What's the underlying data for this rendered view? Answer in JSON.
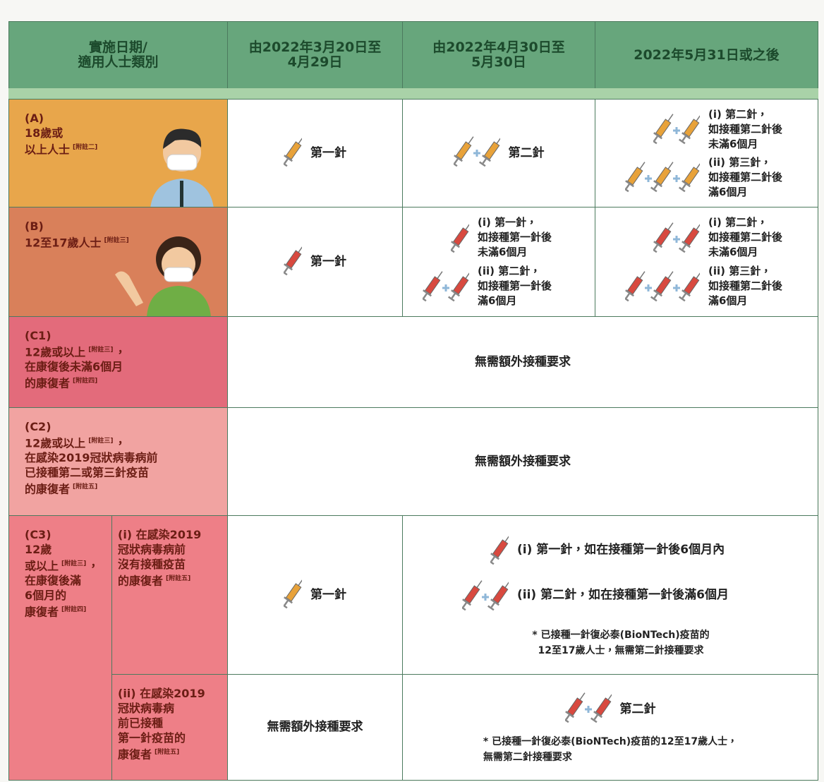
{
  "header": [
    [
      "實施日期/",
      "適用人士類別"
    ],
    [
      "由2022年3月20日至",
      "4月29日"
    ],
    [
      "由2022年4月30日至",
      "5月30日"
    ],
    [
      "2022年5月31日或之後"
    ]
  ],
  "rows": [
    {
      "label": [
        "(A)",
        "18歲或",
        [
          "以上人士",
          "[附註二]"
        ]
      ],
      "period1": [
        "第一針"
      ],
      "period2": [
        "第二針"
      ],
      "period3": [
        [
          "(i) 第二針，",
          "如接種第二針後",
          "未滿6個月"
        ],
        [
          "(ii) 第三針，",
          "如接種第二針後",
          "滿6個月"
        ]
      ]
    },
    {
      "label": [
        "(B)",
        [
          "12至17歲人士",
          "[附註三]"
        ]
      ],
      "period1": [
        "第一針"
      ],
      "period2": [
        [
          "(i) 第一針，",
          "如接種第一針後",
          "未滿6個月"
        ],
        [
          "(ii) 第二針，",
          "如接種第一針後",
          "滿6個月"
        ]
      ],
      "period3": [
        [
          "(i) 第二針，",
          "如接種第二針後",
          "未滿6個月"
        ],
        [
          "(ii) 第三針，",
          "如接種第二針後",
          "滿6個月"
        ]
      ]
    },
    {
      "label": [
        "(C1)",
        [
          "12歲或以上",
          "[附註三]",
          "，"
        ],
        "在康復後未滿6個月",
        [
          "的康復者",
          "[附註四]"
        ]
      ],
      "all_periods": [
        "無需額外接種要求"
      ]
    },
    {
      "label": [
        "(C2)",
        [
          "12歲或以上",
          "[附註三]",
          "，"
        ],
        "在感染2019冠狀病毒病前",
        "已接種第二或第三針疫苗",
        [
          "的康復者",
          "[附註五]"
        ]
      ],
      "all_periods": [
        "無需額外接種要求"
      ]
    },
    {
      "label": [
        "(C3)",
        "12歲",
        [
          "或以上",
          "[附註三]",
          "，"
        ],
        "在康復後滿",
        "6個月的",
        [
          "康復者",
          "[附註四]"
        ]
      ],
      "subrows": [
        {
          "label": [
            "(i) 在感染2019",
            "冠狀病毒病前",
            "沒有接種疫苗",
            [
              "的康復者",
              "[附註五]"
            ]
          ],
          "period1": [
            "第一針"
          ],
          "period2_3": [
            [
              "(i) 第一針，如在接種第一針後6個月內"
            ],
            [
              "(ii) 第二針，如在接種第一針後滿6個月"
            ]
          ],
          "remark": [
            "* 已接種一針復必泰(BioNTech)疫苗的",
            "12至17歲人士，無需第二針接種要求"
          ]
        },
        {
          "label": [
            "(ii) 在感染2019",
            "冠狀病毒病",
            "前已接種",
            "第一針疫苗的",
            [
              "康復者",
              "[附註五]"
            ]
          ],
          "period1": [
            "無需額外接種要求"
          ],
          "period2_3": [
            [
              "第二針"
            ]
          ],
          "remark": [
            "* 已接種一針復必泰(BioNTech)疫苗的12至17歲人士，",
            "無需第二針接種要求"
          ]
        }
      ]
    }
  ]
}
